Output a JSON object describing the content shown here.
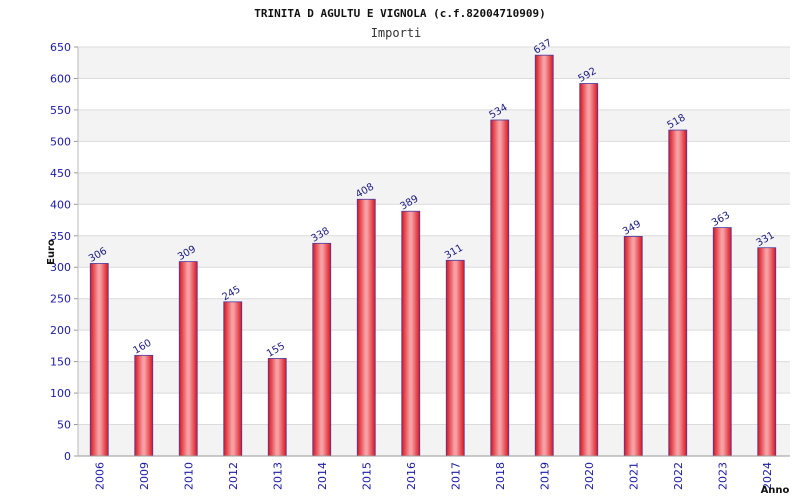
{
  "chart_data": {
    "type": "bar",
    "title": "TRINITA D AGULTU E VIGNOLA (c.f.82004710909)",
    "subtitle": "Importi",
    "xlabel": "Anno",
    "ylabel": "Euro",
    "categories": [
      "2006",
      "2009",
      "2010",
      "2012",
      "2013",
      "2014",
      "2015",
      "2016",
      "2017",
      "2018",
      "2019",
      "2020",
      "2021",
      "2022",
      "2023",
      "2024"
    ],
    "values": [
      306,
      160,
      309,
      245,
      155,
      338,
      408,
      389,
      311,
      534,
      637,
      592,
      349,
      518,
      363,
      331
    ],
    "ylim": [
      0,
      650
    ],
    "yticks": [
      0,
      50,
      100,
      150,
      200,
      250,
      300,
      350,
      400,
      450,
      500,
      550,
      600,
      650
    ],
    "grid": true,
    "bar_color": "#e8202a",
    "bar_edge_color": "#4a3aa0",
    "label_color": "#1a1a80",
    "tick_color": "#1a1aa8"
  }
}
